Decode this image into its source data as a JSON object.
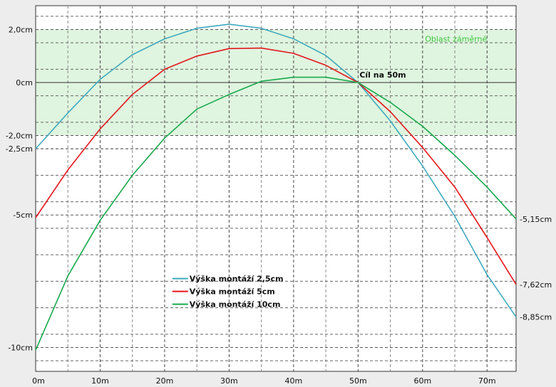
{
  "chart_data": {
    "type": "line",
    "xlim": [
      0,
      74.5
    ],
    "ylim": [
      -10.9,
      2.9
    ],
    "x_ticks": [
      {
        "value": 0,
        "label": "0m"
      },
      {
        "value": 10,
        "label": "10m"
      },
      {
        "value": 20,
        "label": "20m"
      },
      {
        "value": 30,
        "label": "30m"
      },
      {
        "value": 40,
        "label": "40m"
      },
      {
        "value": 50,
        "label": "50m"
      },
      {
        "value": 60,
        "label": "60m"
      },
      {
        "value": 70,
        "label": "70m"
      }
    ],
    "y_ticks": [
      {
        "value": 2.0,
        "label": "2,0cm"
      },
      {
        "value": 0,
        "label": "0cm"
      },
      {
        "value": -2.0,
        "label": "-2,0cm"
      },
      {
        "value": -2.5,
        "label": "-2,5cm"
      },
      {
        "value": -5,
        "label": "-5cm"
      },
      {
        "value": -10,
        "label": "-10cm"
      }
    ],
    "zero_line": 0,
    "zone": {
      "label": "Oblast záměrné",
      "y_from": -2.0,
      "y_to": 2.0,
      "color": "#dff5df",
      "label_color": "#3ec43e"
    },
    "target": {
      "label": "Cíl na 50m",
      "x": 50,
      "y": 0
    },
    "grid": true,
    "legend_position": "bottom-left",
    "series": [
      {
        "name": "Výška montáží 2,5cm",
        "color": "#3fa9bd",
        "end_label": "-8,85cm",
        "x": [
          0,
          5,
          10,
          15,
          20,
          25,
          30,
          35,
          40,
          45,
          50,
          55,
          60,
          65,
          70,
          74.5
        ],
        "y": [
          -2.5,
          -1.15,
          0.12,
          1.05,
          1.65,
          2.05,
          2.2,
          2.05,
          1.65,
          1.02,
          0,
          -1.45,
          -3.15,
          -5.05,
          -7.25,
          -8.85
        ]
      },
      {
        "name": "Výška montáží 5cm",
        "color": "#e4151b",
        "end_label": "-7,62cm",
        "x": [
          0,
          5,
          10,
          15,
          20,
          25,
          30,
          35,
          40,
          45,
          50,
          55,
          60,
          65,
          70,
          74.5
        ],
        "y": [
          -5.1,
          -3.3,
          -1.75,
          -0.45,
          0.5,
          1.0,
          1.28,
          1.3,
          1.1,
          0.65,
          0,
          -1.1,
          -2.45,
          -3.95,
          -5.85,
          -7.62
        ]
      },
      {
        "name": "Výška montáží 10cm",
        "color": "#17a94c",
        "end_label": "-5,15cm",
        "x": [
          0,
          5,
          10,
          15,
          20,
          25,
          30,
          35,
          40,
          45,
          50,
          55,
          60,
          65,
          70,
          74.5
        ],
        "y": [
          -10.1,
          -7.3,
          -5.2,
          -3.5,
          -2.1,
          -1.0,
          -0.45,
          0.05,
          0.2,
          0.2,
          0,
          -0.75,
          -1.65,
          -2.75,
          -3.95,
          -5.15
        ]
      }
    ]
  }
}
